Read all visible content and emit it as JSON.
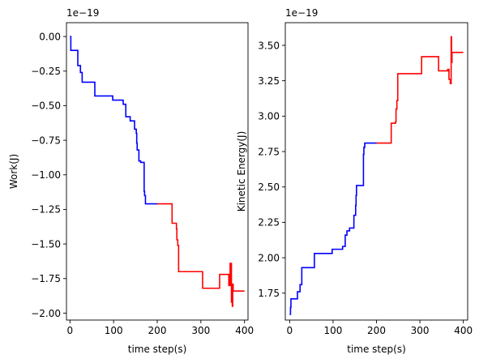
{
  "chart_data": [
    {
      "type": "line",
      "xlabel": "time step(s)",
      "ylabel": "Work(J)",
      "offset_text": "1e−19",
      "xlim": [
        -8,
        408
      ],
      "ylim": [
        -2.05,
        0.1
      ],
      "xticks": [
        0,
        100,
        200,
        300,
        400
      ],
      "xtick_labels": [
        "0",
        "100",
        "200",
        "300",
        "400"
      ],
      "yticks": [
        0.0,
        -0.25,
        -0.5,
        -0.75,
        -1.0,
        -1.25,
        -1.5,
        -1.75,
        -2.0
      ],
      "ytick_labels": [
        "0.00",
        "−0.25",
        "−0.50",
        "−0.75",
        "−1.00",
        "−1.25",
        "−1.50",
        "−1.75",
        "−2.00"
      ],
      "grid": false,
      "series": [
        {
          "color": "#0000ff",
          "x": [
            0,
            2,
            2,
            18,
            18,
            24,
            24,
            28,
            28,
            57,
            57,
            58,
            58,
            98,
            98,
            122,
            122,
            128,
            128,
            132,
            132,
            138,
            138,
            148,
            148,
            152,
            152,
            153,
            153,
            154,
            154,
            158,
            158,
            159,
            159,
            162,
            162,
            170,
            170,
            171,
            171,
            173,
            173,
            175,
            175,
            200
          ],
          "y": [
            0.0,
            0.0,
            -0.1,
            -0.1,
            -0.21,
            -0.21,
            -0.26,
            -0.26,
            -0.33,
            -0.33,
            -0.43,
            -0.43,
            -0.43,
            -0.43,
            -0.46,
            -0.46,
            -0.49,
            -0.49,
            -0.58,
            -0.58,
            -0.58,
            -0.58,
            -0.61,
            -0.61,
            -0.67,
            -0.67,
            -0.7,
            -0.7,
            -0.77,
            -0.77,
            -0.82,
            -0.82,
            -0.9,
            -0.9,
            -0.9,
            -0.9,
            -0.91,
            -0.91,
            -1.12,
            -1.12,
            -1.15,
            -1.15,
            -1.21,
            -1.21,
            -1.21,
            -1.21
          ]
        },
        {
          "color": "#ff0000",
          "x": [
            200,
            234,
            234,
            244,
            244,
            245,
            245,
            247,
            247,
            249,
            249,
            250,
            250,
            304,
            304,
            343,
            343,
            364,
            364,
            367,
            367,
            370,
            370,
            372,
            372,
            373,
            373,
            374,
            374,
            377,
            377,
            382,
            382,
            400
          ],
          "y": [
            -1.21,
            -1.21,
            -1.35,
            -1.35,
            -1.39,
            -1.39,
            -1.47,
            -1.47,
            -1.51,
            -1.51,
            -1.7,
            -1.7,
            -1.7,
            -1.7,
            -1.82,
            -1.82,
            -1.72,
            -1.72,
            -1.8,
            -1.8,
            -1.64,
            -1.64,
            -1.92,
            -1.92,
            -1.95,
            -1.95,
            -1.79,
            -1.79,
            -1.84,
            -1.84,
            -1.84,
            -1.84,
            -1.84,
            -1.84
          ]
        }
      ]
    },
    {
      "type": "line",
      "xlabel": "time step(s)",
      "ylabel": "Kinetic Energy(J)",
      "offset_text": "1e−19",
      "xlim": [
        -10,
        410
      ],
      "ylim": [
        1.56,
        3.66
      ],
      "xticks": [
        0,
        100,
        200,
        300,
        400
      ],
      "xtick_labels": [
        "0",
        "100",
        "200",
        "300",
        "400"
      ],
      "yticks": [
        1.75,
        2.0,
        2.25,
        2.5,
        2.75,
        3.0,
        3.25,
        3.5
      ],
      "ytick_labels": [
        "1.75",
        "2.00",
        "2.25",
        "2.50",
        "2.75",
        "3.00",
        "3.25",
        "3.50"
      ],
      "grid": false,
      "series": [
        {
          "color": "#0000ff",
          "x": [
            0,
            2,
            2,
            3,
            3,
            18,
            18,
            24,
            24,
            28,
            28,
            57,
            57,
            58,
            58,
            98,
            98,
            122,
            122,
            128,
            128,
            132,
            132,
            138,
            138,
            148,
            148,
            152,
            152,
            153,
            153,
            154,
            154,
            158,
            158,
            170,
            170,
            171,
            171,
            173,
            173,
            175,
            175,
            200
          ],
          "y": [
            1.6,
            1.6,
            1.65,
            1.65,
            1.71,
            1.71,
            1.76,
            1.76,
            1.81,
            1.81,
            1.93,
            1.93,
            2.03,
            2.03,
            2.03,
            2.03,
            2.06,
            2.06,
            2.08,
            2.08,
            2.16,
            2.16,
            2.19,
            2.19,
            2.21,
            2.21,
            2.3,
            2.3,
            2.37,
            2.37,
            2.44,
            2.44,
            2.51,
            2.51,
            2.51,
            2.51,
            2.73,
            2.73,
            2.78,
            2.78,
            2.81,
            2.81,
            2.81,
            2.81
          ]
        },
        {
          "color": "#ff0000",
          "x": [
            200,
            234,
            234,
            244,
            244,
            245,
            245,
            247,
            247,
            249,
            249,
            250,
            250,
            304,
            304,
            343,
            343,
            364,
            364,
            367,
            367,
            370,
            370,
            372,
            372,
            373,
            373,
            374,
            374,
            377,
            377,
            400
          ],
          "y": [
            2.81,
            2.81,
            2.95,
            2.95,
            2.96,
            2.96,
            3.05,
            3.05,
            3.11,
            3.11,
            3.3,
            3.3,
            3.3,
            3.3,
            3.42,
            3.42,
            3.32,
            3.32,
            3.33,
            3.33,
            3.26,
            3.26,
            3.23,
            3.23,
            3.56,
            3.56,
            3.38,
            3.38,
            3.45,
            3.45,
            3.45,
            3.45
          ]
        }
      ]
    }
  ]
}
